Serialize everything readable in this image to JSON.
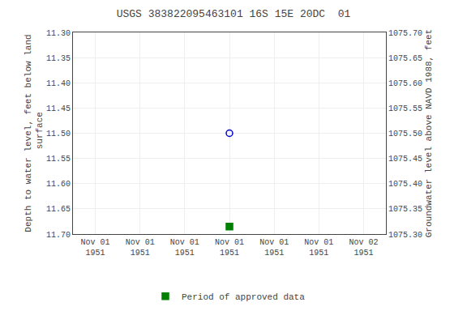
{
  "chart_data": {
    "type": "scatter",
    "title": "USGS 383822095463101 16S 15E 20DC  01",
    "ylabel": "Depth to water level, feet below land\n surface",
    "y2label": "Groundwater level above NAVD 1988, feet",
    "categories": [
      "Nov 01\n1951",
      "Nov 01\n1951",
      "Nov 01\n1951",
      "Nov 01\n1951",
      "Nov 01\n1951",
      "Nov 01\n1951",
      "Nov 02\n1951"
    ],
    "series": [
      {
        "color": "#0000cc",
        "marker": "circle-open",
        "values": [
          null,
          null,
          null,
          11.5,
          null,
          null,
          null
        ]
      },
      {
        "name": "Period of approved data",
        "color": "#008000",
        "marker": "square",
        "values": [
          null,
          null,
          null,
          11.685,
          null,
          null,
          null
        ]
      }
    ],
    "ylim": [
      11.7,
      11.3
    ],
    "yticks": [
      {
        "value": 11.3,
        "label": "11.30"
      },
      11.35,
      {
        "value": 11.4,
        "label": "11.40"
      },
      11.45,
      {
        "value": 11.5,
        "label": "11.50"
      },
      11.55,
      {
        "value": 11.6,
        "label": "11.60"
      },
      11.65,
      {
        "value": 11.7,
        "label": "11.70"
      }
    ],
    "y2lim": [
      1075.3,
      1075.7
    ],
    "y2ticks": [
      {
        "value": 1075.7,
        "label": "1075.70"
      },
      1075.65,
      {
        "value": 1075.6,
        "label": "1075.60"
      },
      1075.55,
      {
        "value": 1075.5,
        "label": "1075.50"
      },
      1075.45,
      {
        "value": 1075.4,
        "label": "1075.40"
      },
      1075.35,
      {
        "value": 1075.3,
        "label": "1075.30"
      }
    ],
    "grid": true,
    "legend": "lower center"
  }
}
